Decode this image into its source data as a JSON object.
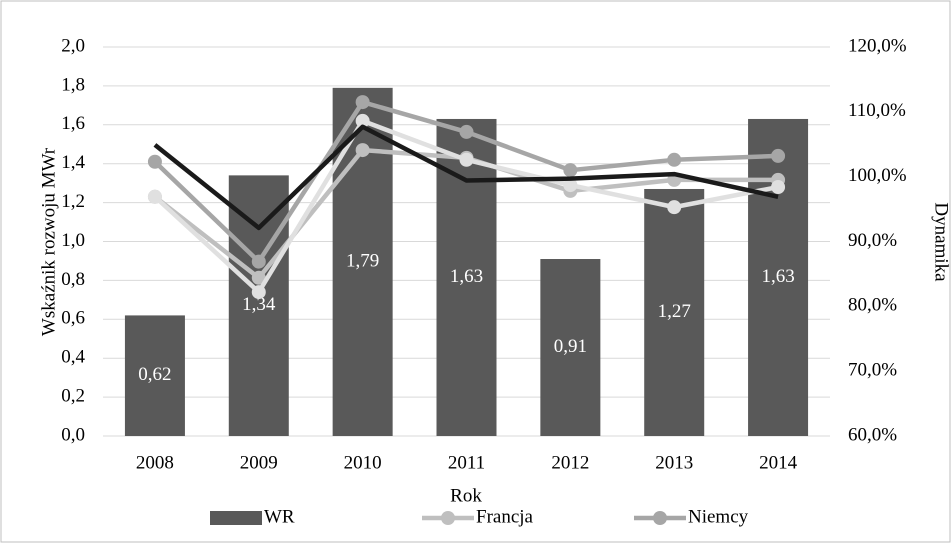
{
  "chart_data": {
    "type": "bar_line",
    "xlabel": "Rok",
    "ylabel": "Wskaźnik rozwoju  MWr",
    "y2label": "Dynamika",
    "categories": [
      "2008",
      "2009",
      "2010",
      "2011",
      "2012",
      "2013",
      "2014"
    ],
    "ylim": [
      0,
      2.0
    ],
    "yticks": [
      {
        "value": 0,
        "label": "0,0"
      },
      {
        "value": 0.2,
        "label": "0,2"
      },
      {
        "value": 0.4,
        "label": "0,4"
      },
      {
        "value": 0.6,
        "label": "0,6"
      },
      {
        "value": 0.8,
        "label": "0,8"
      },
      {
        "value": 1.0,
        "label": "1,0"
      },
      {
        "value": 1.2,
        "label": "1,2"
      },
      {
        "value": 1.4,
        "label": "1,4"
      },
      {
        "value": 1.6,
        "label": "1,6"
      },
      {
        "value": 1.8,
        "label": "1,8"
      },
      {
        "value": 2.0,
        "label": "2,0"
      }
    ],
    "y2lim": [
      60,
      120
    ],
    "y2ticks": [
      {
        "value": 60,
        "label": "60,0%"
      },
      {
        "value": 70,
        "label": "70,0%"
      },
      {
        "value": 80,
        "label": "80,0%"
      },
      {
        "value": 90,
        "label": "90,0%"
      },
      {
        "value": 100,
        "label": "100,0%"
      },
      {
        "value": 110,
        "label": "110,0%"
      },
      {
        "value": 120,
        "label": "120,0%"
      }
    ],
    "grid": true,
    "legend": "bottom",
    "series": [
      {
        "name": "WR",
        "kind": "bar",
        "color": "#595959",
        "values": [
          0.62,
          1.34,
          1.79,
          1.63,
          0.91,
          1.27,
          1.63
        ],
        "value_labels": [
          "0,62",
          "1,34",
          "1,79",
          "1,63",
          "0,91",
          "1,27",
          "1,63"
        ]
      },
      {
        "name": "Francja",
        "kind": "line",
        "axis": "y2",
        "marker": true,
        "color": "#bfbfbf",
        "values": [
          96.9,
          84.4,
          104.1,
          102.9,
          97.8,
          99.5,
          99.5
        ]
      },
      {
        "name": "Niemcy",
        "kind": "line",
        "axis": "y2",
        "marker": true,
        "color": "#a6a6a6",
        "values": [
          102.3,
          86.9,
          111.5,
          106.9,
          101.0,
          102.6,
          103.2
        ]
      },
      {
        "kind": "line",
        "axis": "y2",
        "marker": true,
        "color": "#e0e0e0",
        "values": [
          96.9,
          82.2,
          108.6,
          102.6,
          98.7,
          95.3,
          98.4
        ]
      },
      {
        "kind": "line",
        "axis": "y2",
        "marker": false,
        "color": "#1a1a1a",
        "values": [
          104.9,
          92.1,
          107.7,
          99.4,
          99.7,
          100.4,
          96.9
        ]
      }
    ]
  }
}
